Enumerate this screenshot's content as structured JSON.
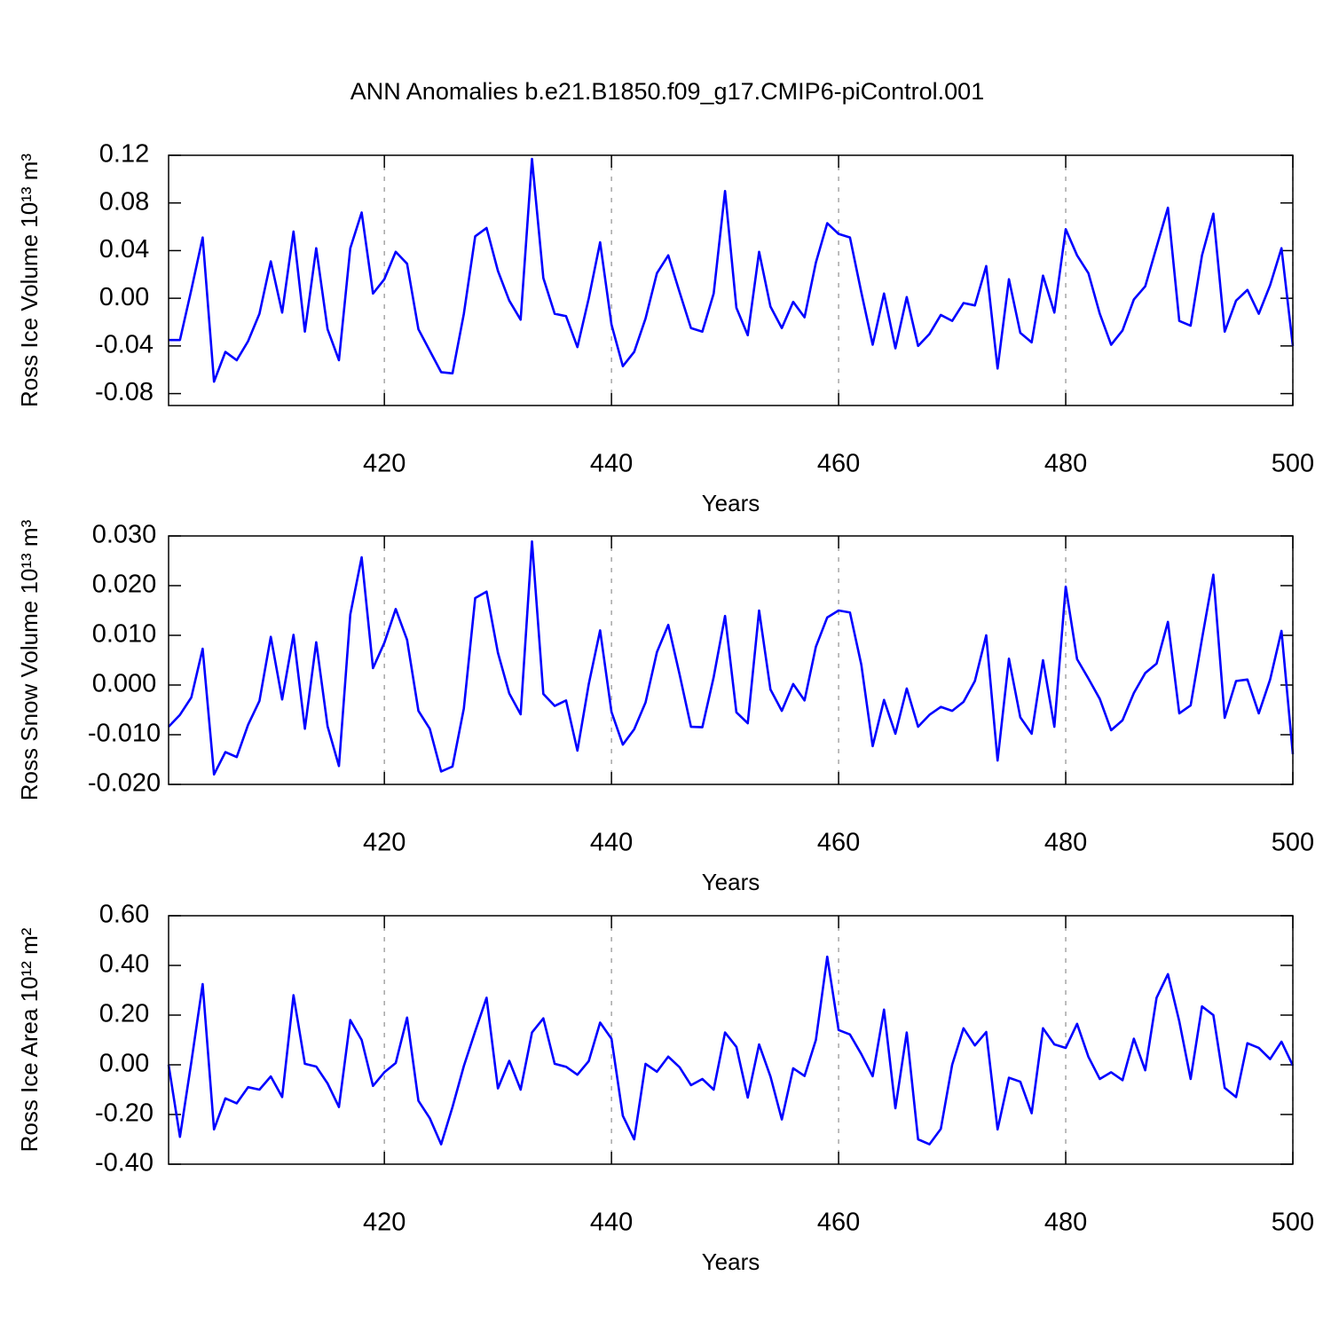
{
  "chart_data": [
    {
      "type": "line",
      "title": "ANN Anomalies b.e21.B1850.f09_g17.CMIP6-piControl.001",
      "xlabel": "Years",
      "ylabel": "Ross Ice Volume 10¹³ m³",
      "color": "#0000ff",
      "xlim": [
        401,
        500
      ],
      "xticks": [
        420,
        440,
        460,
        480,
        500
      ],
      "ylim": [
        -0.09,
        0.12
      ],
      "yticks": [
        {
          "value": -0.08,
          "label": "-0.08"
        },
        {
          "value": -0.04,
          "label": "-0.04"
        },
        {
          "value": 0,
          "label": "0.00"
        },
        {
          "value": 0.04,
          "label": "0.04"
        },
        {
          "value": 0.08,
          "label": "0.08"
        },
        {
          "value": 0.12,
          "label": "0.12"
        }
      ],
      "grid": true,
      "x": [
        401,
        402,
        403,
        404,
        405,
        406,
        407,
        408,
        409,
        410,
        411,
        412,
        413,
        414,
        415,
        416,
        417,
        418,
        419,
        420,
        421,
        422,
        423,
        424,
        425,
        426,
        427,
        428,
        429,
        430,
        431,
        432,
        433,
        434,
        435,
        436,
        437,
        438,
        439,
        440,
        441,
        442,
        443,
        444,
        445,
        446,
        447,
        448,
        449,
        450,
        451,
        452,
        453,
        454,
        455,
        456,
        457,
        458,
        459,
        460,
        461,
        462,
        463,
        464,
        465,
        466,
        467,
        468,
        469,
        470,
        471,
        472,
        473,
        474,
        475,
        476,
        477,
        478,
        479,
        480,
        481,
        482,
        483,
        484,
        485,
        486,
        487,
        488,
        489,
        490,
        491,
        492,
        493,
        494,
        495,
        496,
        497,
        498,
        499,
        500
      ],
      "values": [
        -0.035,
        -0.035,
        0.007,
        0.051,
        -0.07,
        -0.045,
        -0.052,
        -0.036,
        -0.013,
        0.031,
        -0.012,
        0.056,
        -0.028,
        0.042,
        -0.026,
        -0.052,
        0.042,
        0.072,
        0.004,
        0.016,
        0.039,
        0.029,
        -0.026,
        -0.044,
        -0.062,
        -0.063,
        -0.013,
        0.052,
        0.059,
        0.023,
        -0.002,
        -0.018,
        0.117,
        0.017,
        -0.013,
        -0.015,
        -0.041,
        0.0,
        0.047,
        -0.022,
        -0.057,
        -0.045,
        -0.017,
        0.021,
        0.036,
        0.005,
        -0.025,
        -0.028,
        0.004,
        0.09,
        -0.008,
        -0.031,
        0.039,
        -0.007,
        -0.025,
        -0.003,
        -0.016,
        0.03,
        0.063,
        0.054,
        0.051,
        0.005,
        -0.039,
        0.004,
        -0.042,
        0.001,
        -0.04,
        -0.03,
        -0.014,
        -0.019,
        -0.004,
        -0.006,
        0.027,
        -0.059,
        0.016,
        -0.029,
        -0.037,
        0.019,
        -0.012,
        0.058,
        0.036,
        0.021,
        -0.013,
        -0.039,
        -0.027,
        -0.001,
        0.01,
        0.043,
        0.076,
        -0.019,
        -0.023,
        0.036,
        0.071,
        -0.028,
        -0.002,
        0.007,
        -0.013,
        0.011,
        0.042,
        -0.04
      ]
    },
    {
      "type": "line",
      "xlabel": "Years",
      "ylabel": "Ross Snow Volume 10¹³ m³",
      "color": "#0000ff",
      "xlim": [
        401,
        500
      ],
      "xticks": [
        420,
        440,
        460,
        480,
        500
      ],
      "ylim": [
        -0.02,
        0.03
      ],
      "yticks": [
        {
          "value": -0.02,
          "label": "-0.020"
        },
        {
          "value": -0.01,
          "label": "-0.010"
        },
        {
          "value": 0,
          "label": "0.000"
        },
        {
          "value": 0.01,
          "label": "0.010"
        },
        {
          "value": 0.02,
          "label": "0.020"
        },
        {
          "value": 0.03,
          "label": "0.030"
        }
      ],
      "grid": true,
      "x": [
        401,
        402,
        403,
        404,
        405,
        406,
        407,
        408,
        409,
        410,
        411,
        412,
        413,
        414,
        415,
        416,
        417,
        418,
        419,
        420,
        421,
        422,
        423,
        424,
        425,
        426,
        427,
        428,
        429,
        430,
        431,
        432,
        433,
        434,
        435,
        436,
        437,
        438,
        439,
        440,
        441,
        442,
        443,
        444,
        445,
        446,
        447,
        448,
        449,
        450,
        451,
        452,
        453,
        454,
        455,
        456,
        457,
        458,
        459,
        460,
        461,
        462,
        463,
        464,
        465,
        466,
        467,
        468,
        469,
        470,
        471,
        472,
        473,
        474,
        475,
        476,
        477,
        478,
        479,
        480,
        481,
        482,
        483,
        484,
        485,
        486,
        487,
        488,
        489,
        490,
        491,
        492,
        493,
        494,
        495,
        496,
        497,
        498,
        499,
        500
      ],
      "values": [
        -0.0084,
        -0.006,
        -0.0025,
        0.0073,
        -0.018,
        -0.0135,
        -0.0145,
        -0.008,
        -0.0032,
        0.0097,
        -0.0029,
        0.0101,
        -0.0088,
        0.0086,
        -0.0083,
        -0.0163,
        0.0142,
        0.0257,
        0.0034,
        0.0085,
        0.0153,
        0.0091,
        -0.0052,
        -0.0088,
        -0.0174,
        -0.0164,
        -0.0047,
        0.0175,
        0.0188,
        0.0065,
        -0.0017,
        -0.0059,
        0.0289,
        -0.0018,
        -0.0042,
        -0.0031,
        -0.0132,
        0.0002,
        0.011,
        -0.0054,
        -0.012,
        -0.0089,
        -0.0035,
        0.0066,
        0.0121,
        0.0021,
        -0.0084,
        -0.0085,
        0.0016,
        0.0139,
        -0.0055,
        -0.0077,
        0.015,
        -0.0009,
        -0.0052,
        0.0002,
        -0.0031,
        0.0077,
        0.0136,
        0.015,
        0.0146,
        0.0041,
        -0.0123,
        -0.003,
        -0.0098,
        -0.0007,
        -0.0084,
        -0.006,
        -0.0044,
        -0.0052,
        -0.0034,
        0.0008,
        0.01,
        -0.0152,
        0.0053,
        -0.0065,
        -0.0098,
        0.005,
        -0.0084,
        0.0198,
        0.0052,
        0.0013,
        -0.0028,
        -0.0091,
        -0.0071,
        -0.0016,
        0.0024,
        0.0043,
        0.0127,
        -0.0057,
        -0.0041,
        0.0093,
        0.0222,
        -0.0066,
        0.0008,
        0.0011,
        -0.0057,
        0.0011,
        0.0109,
        -0.0139
      ]
    },
    {
      "type": "line",
      "xlabel": "Years",
      "ylabel": "Ross Ice Area 10¹² m²",
      "color": "#0000ff",
      "xlim": [
        401,
        500
      ],
      "xticks": [
        420,
        440,
        460,
        480,
        500
      ],
      "ylim": [
        -0.4,
        0.6
      ],
      "yticks": [
        {
          "value": -0.4,
          "label": "-0.40"
        },
        {
          "value": -0.2,
          "label": "-0.20"
        },
        {
          "value": 0,
          "label": "0.00"
        },
        {
          "value": 0.2,
          "label": "0.20"
        },
        {
          "value": 0.4,
          "label": "0.40"
        },
        {
          "value": 0.6,
          "label": "0.60"
        }
      ],
      "grid": true,
      "x": [
        401,
        402,
        403,
        404,
        405,
        406,
        407,
        408,
        409,
        410,
        411,
        412,
        413,
        414,
        415,
        416,
        417,
        418,
        419,
        420,
        421,
        422,
        423,
        424,
        425,
        426,
        427,
        428,
        429,
        430,
        431,
        432,
        433,
        434,
        435,
        436,
        437,
        438,
        439,
        440,
        441,
        442,
        443,
        444,
        445,
        446,
        447,
        448,
        449,
        450,
        451,
        452,
        453,
        454,
        455,
        456,
        457,
        458,
        459,
        460,
        461,
        462,
        463,
        464,
        465,
        466,
        467,
        468,
        469,
        470,
        471,
        472,
        473,
        474,
        475,
        476,
        477,
        478,
        479,
        480,
        481,
        482,
        483,
        484,
        485,
        486,
        487,
        488,
        489,
        490,
        491,
        492,
        493,
        494,
        495,
        496,
        497,
        498,
        499,
        500
      ],
      "values": [
        0.0,
        -0.29,
        0.01,
        0.325,
        -0.26,
        -0.135,
        -0.155,
        -0.09,
        -0.1,
        -0.047,
        -0.13,
        0.28,
        0.004,
        -0.007,
        -0.075,
        -0.17,
        0.18,
        0.1,
        -0.085,
        -0.03,
        0.007,
        0.19,
        -0.145,
        -0.215,
        -0.32,
        -0.17,
        -0.005,
        0.135,
        0.27,
        -0.095,
        0.016,
        -0.1,
        0.13,
        0.187,
        0.004,
        -0.008,
        -0.04,
        0.015,
        0.17,
        0.105,
        -0.205,
        -0.3,
        0.004,
        -0.028,
        0.033,
        -0.01,
        -0.082,
        -0.057,
        -0.1,
        0.13,
        0.072,
        -0.132,
        0.082,
        -0.047,
        -0.22,
        -0.014,
        -0.045,
        0.1,
        0.435,
        0.14,
        0.122,
        0.043,
        -0.046,
        0.222,
        -0.175,
        0.13,
        -0.3,
        -0.32,
        -0.258,
        0.0,
        0.147,
        0.078,
        0.132,
        -0.26,
        -0.052,
        -0.068,
        -0.195,
        0.147,
        0.082,
        0.068,
        0.165,
        0.032,
        -0.057,
        -0.03,
        -0.062,
        0.105,
        -0.022,
        0.27,
        0.365,
        0.175,
        -0.057,
        0.235,
        0.2,
        -0.093,
        -0.13,
        0.087,
        0.068,
        0.023,
        0.093,
        -0.003
      ]
    }
  ]
}
